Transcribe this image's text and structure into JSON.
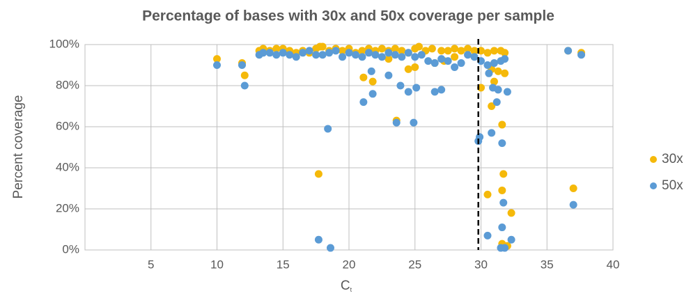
{
  "chart_data": {
    "type": "scatter",
    "title": "Percentage of bases with 30x and 50x coverage per sample",
    "x_label": "C",
    "x_label_sub": "t",
    "y_label": "Percent coverage",
    "xlim": [
      0,
      40
    ],
    "xticks": [
      5,
      10,
      15,
      20,
      25,
      30,
      35,
      40
    ],
    "ylim": [
      0,
      100
    ],
    "yticks": [
      {
        "value": 0,
        "label": "0%"
      },
      {
        "value": 20,
        "label": "20%"
      },
      {
        "value": 40,
        "label": "40%"
      },
      {
        "value": 60,
        "label": "60%"
      },
      {
        "value": 80,
        "label": "80%"
      },
      {
        "value": 100,
        "label": "100%"
      }
    ],
    "grid": true,
    "legend": "right",
    "vline": 29.8,
    "series": [
      {
        "name": "30x",
        "color": "#f5b90a",
        "x": [
          10,
          11.9,
          12.1,
          13.2,
          13.5,
          14,
          14.5,
          15,
          15.5,
          16,
          16.5,
          17,
          17.5,
          17.8,
          18,
          18.5,
          19,
          19.5,
          20,
          20.5,
          21,
          21.5,
          22,
          22.5,
          23,
          23.5,
          24,
          24.5,
          25,
          25.3,
          25.8,
          26.3,
          27,
          27.5,
          28,
          28.5,
          29,
          29.5,
          30,
          30.5,
          31,
          31.5,
          31.8,
          17.7,
          21.1,
          21.8,
          23,
          23.6,
          24.5,
          25,
          26.5,
          27.2,
          28,
          30,
          30.5,
          30.8,
          31,
          31.3,
          31.6,
          31.7,
          31.6,
          31.8,
          31.6,
          32,
          32.3,
          36.6,
          37,
          37.6,
          30.8
        ],
        "values": [
          93,
          91,
          85,
          97,
          98,
          97,
          98,
          98,
          97,
          96,
          97,
          96,
          98,
          99,
          99,
          97,
          98,
          97,
          98,
          96,
          97,
          98,
          97,
          98,
          97,
          98,
          97,
          96,
          98,
          99,
          97,
          98,
          97,
          97,
          98,
          97,
          98,
          97,
          97,
          96,
          97,
          97,
          96,
          37,
          84,
          82,
          93,
          63,
          88,
          89,
          91,
          92,
          94,
          79,
          27,
          70,
          82,
          87,
          61,
          37,
          29,
          86,
          3,
          2,
          18,
          97,
          30,
          96,
          88
        ]
      },
      {
        "name": "50x",
        "color": "#5b9bd5",
        "x": [
          10,
          11.9,
          12.1,
          13.2,
          13.5,
          14,
          14.5,
          15,
          15.5,
          16,
          16.5,
          17,
          17.5,
          18,
          18.5,
          19,
          19.5,
          20,
          20.5,
          21,
          21.5,
          22,
          22.5,
          23,
          23.5,
          24,
          24.5,
          25,
          25.5,
          26,
          26.5,
          27,
          27.5,
          28,
          28.5,
          29,
          29.5,
          30,
          30.5,
          31,
          31.5,
          31.8,
          17.7,
          18.4,
          18.6,
          21.1,
          21.7,
          21.8,
          23,
          23.6,
          23.9,
          24.5,
          24.9,
          25.1,
          26.5,
          27,
          29.8,
          29.9,
          30.5,
          30.8,
          30.9,
          31.2,
          31.3,
          31.6,
          31.6,
          31.7,
          31.5,
          31.8,
          32,
          32.3,
          36.6,
          37,
          37.6,
          30.6
        ],
        "values": [
          90,
          90,
          80,
          95,
          96,
          96,
          95,
          96,
          95,
          94,
          96,
          97,
          95,
          95,
          96,
          97,
          94,
          96,
          95,
          94,
          96,
          95,
          94,
          96,
          95,
          94,
          96,
          94,
          95,
          92,
          91,
          93,
          92,
          89,
          91,
          95,
          94,
          92,
          90,
          91,
          92,
          93,
          5,
          59,
          1,
          72,
          87,
          76,
          85,
          62,
          80,
          77,
          62,
          79,
          77,
          78,
          53,
          55,
          7,
          57,
          79,
          72,
          78,
          52,
          11,
          23,
          1,
          1,
          77,
          5,
          97,
          22,
          95,
          86
        ]
      }
    ]
  }
}
